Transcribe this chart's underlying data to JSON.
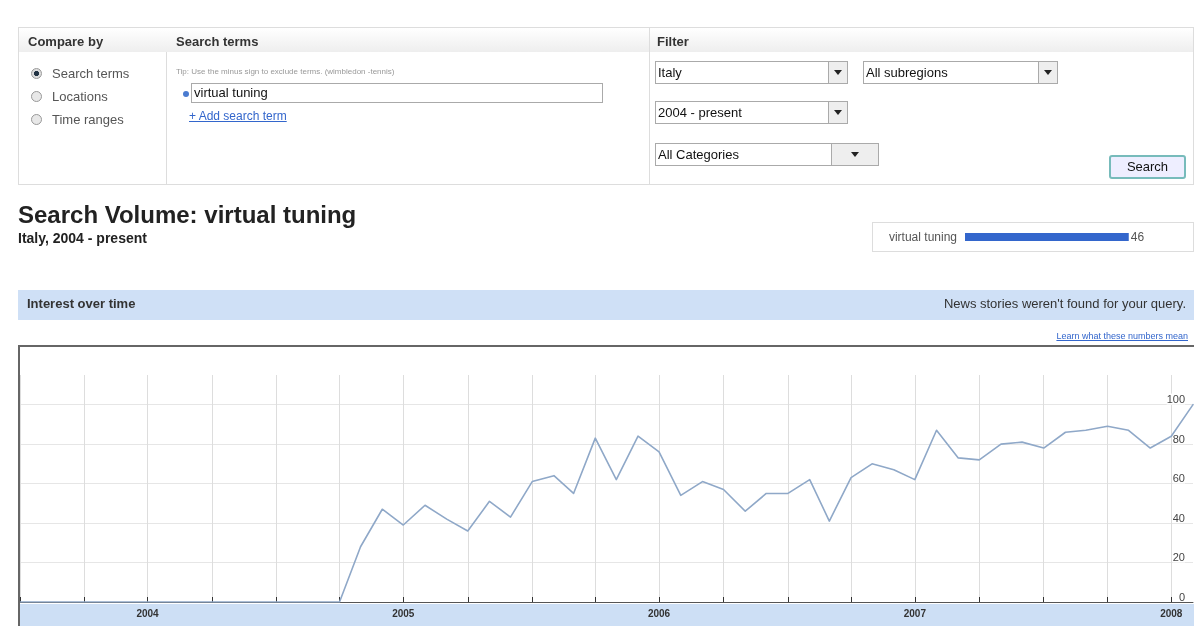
{
  "chart_data": [
    {
      "type": "other",
      "annotations": [
        "Compare by",
        "Search terms",
        "Filter",
        "Search terms",
        "Locations",
        "Time ranges",
        "Tip: Use the minus sign to exclude terms. (wimbledon -tennis)",
        "virtual tuning",
        "+ Add search term",
        "Italy",
        "All subregions",
        "2004 - present",
        "All Categories",
        "Search"
      ]
    },
    {
      "type": "bar",
      "orientation": "horizontal",
      "categories": [
        "virtual tuning"
      ],
      "values": [
        46
      ],
      "color": "#3366cc",
      "data_labels": true
    },
    {
      "type": "line",
      "title": "Search Volume: virtual tuning",
      "subtitle": "Italy, 2004 - present",
      "annotations": [
        "Interest over time",
        "News stories weren't found for your query.",
        "Learn what these numbers mean"
      ],
      "x": [
        "2004-01",
        "2004-02",
        "2004-03",
        "2004-04",
        "2004-05",
        "2004-06",
        "2004-07",
        "2004-08",
        "2004-09",
        "2004-10",
        "2004-11",
        "2004-12",
        "2005-01",
        "2005-02",
        "2005-03",
        "2005-04",
        "2005-05",
        "2005-06",
        "2005-07",
        "2005-08",
        "2005-09",
        "2005-10",
        "2005-11",
        "2005-12",
        "2006-01",
        "2006-02",
        "2006-03",
        "2006-04",
        "2006-05",
        "2006-06",
        "2006-07",
        "2006-08",
        "2006-09",
        "2006-10",
        "2006-11",
        "2006-12",
        "2007-01",
        "2007-02",
        "2007-03",
        "2007-04",
        "2007-05",
        "2007-06",
        "2007-07",
        "2007-08",
        "2007-09",
        "2007-10",
        "2007-11",
        "2007-12",
        "2008-01",
        "2008-02",
        "2008-03",
        "2008-04",
        "2008-05",
        "2008-06",
        "2008-07",
        "2008-08"
      ],
      "values": [
        0,
        0,
        0,
        0,
        0,
        0,
        0,
        0,
        0,
        0,
        0,
        0,
        0,
        0,
        0,
        0,
        28,
        47,
        39,
        49,
        42,
        36,
        51,
        43,
        61,
        64,
        55,
        83,
        62,
        84,
        76,
        54,
        61,
        57,
        46,
        55,
        55,
        62,
        41,
        63,
        70,
        67,
        62,
        87,
        73,
        72,
        80,
        81,
        78,
        86,
        87,
        89,
        87,
        78,
        84,
        100
      ],
      "color": "#8fa8c8",
      "marker": "none",
      "line_style": "solid",
      "grid": true,
      "xlim": [
        "2004-01",
        "2008-08"
      ],
      "xticks": [
        {
          "value": "2004-01",
          "label": null
        },
        {
          "value": "2004-04",
          "label": null
        },
        {
          "value": "2004-07",
          "label": "2004"
        },
        {
          "value": "2004-10",
          "label": null
        },
        {
          "value": "2005-01",
          "label": null
        },
        {
          "value": "2005-04",
          "label": null
        },
        {
          "value": "2005-07",
          "label": "2005"
        },
        {
          "value": "2005-10",
          "label": null
        },
        {
          "value": "2006-01",
          "label": null
        },
        {
          "value": "2006-04",
          "label": null
        },
        {
          "value": "2006-07",
          "label": "2006"
        },
        {
          "value": "2006-10",
          "label": null
        },
        {
          "value": "2007-01",
          "label": null
        },
        {
          "value": "2007-04",
          "label": null
        },
        {
          "value": "2007-07",
          "label": "2007"
        },
        {
          "value": "2007-10",
          "label": null
        },
        {
          "value": "2008-01",
          "label": null
        },
        {
          "value": "2008-04",
          "label": null
        },
        {
          "value": "2008-07",
          "label": "2008"
        }
      ],
      "ylim": [
        0,
        115
      ],
      "yticks": [
        0,
        20,
        40,
        60,
        80,
        100
      ]
    }
  ]
}
